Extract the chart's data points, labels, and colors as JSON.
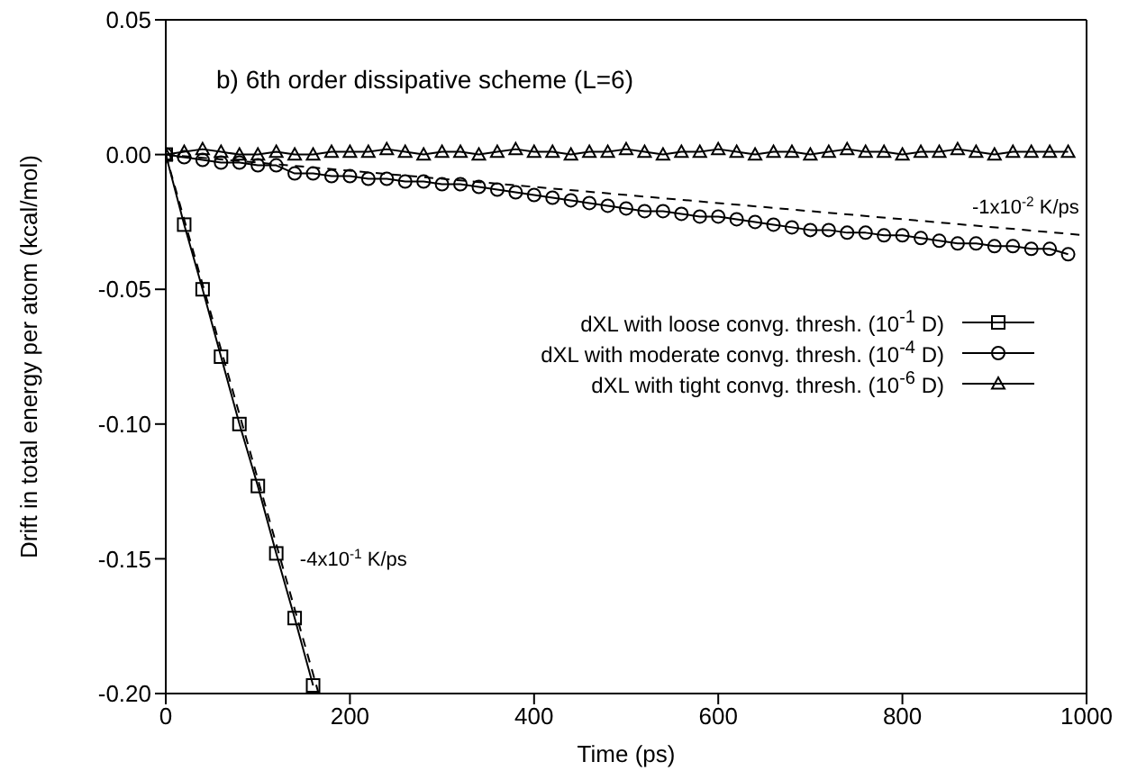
{
  "chart_data": {
    "type": "line",
    "title": "b) 6th order dissipative scheme (L=6)",
    "xlabel": "Time (ps)",
    "ylabel": "Drift in total energy per atom (kcal/mol)",
    "xlim": [
      0,
      1000
    ],
    "xticks": [
      0,
      200,
      400,
      600,
      800,
      1000
    ],
    "ylim": [
      -0.2,
      0.05
    ],
    "yticks": [
      {
        "value": 0.05,
        "label": "0.05"
      },
      {
        "value": 0,
        "label": "0.00"
      },
      {
        "value": -0.05,
        "label": "-0.05"
      },
      {
        "value": -0.1,
        "label": "-0.10"
      },
      {
        "value": -0.15,
        "label": "-0.15"
      },
      {
        "value": -0.2,
        "label": "-0.20"
      }
    ],
    "grid": false,
    "legend": "right",
    "series": [
      {
        "name": "dXL with loose convg. thresh. (10$^{-1}$ D)",
        "color": "#000000",
        "marker": "square",
        "line_style": "solid",
        "x": [
          0,
          20,
          40,
          60,
          80,
          100,
          120,
          140,
          160
        ],
        "values": [
          0,
          -0.026,
          -0.05,
          -0.075,
          -0.1,
          -0.123,
          -0.148,
          -0.172,
          -0.197
        ]
      },
      {
        "name": "dXL with moderate convg. thresh. (10$^{-4}$ D)",
        "color": "#000000",
        "marker": "circle",
        "line_style": "solid",
        "x": [
          0,
          20,
          40,
          60,
          80,
          100,
          120,
          140,
          160,
          180,
          200,
          220,
          240,
          260,
          280,
          300,
          320,
          340,
          360,
          380,
          400,
          420,
          440,
          460,
          480,
          500,
          520,
          540,
          560,
          580,
          600,
          620,
          640,
          660,
          680,
          700,
          720,
          740,
          760,
          780,
          800,
          820,
          840,
          860,
          880,
          900,
          920,
          940,
          960,
          980
        ],
        "values": [
          0,
          -0.001,
          -0.002,
          -0.003,
          -0.003,
          -0.004,
          -0.004,
          -0.007,
          -0.007,
          -0.008,
          -0.008,
          -0.009,
          -0.009,
          -0.01,
          -0.01,
          -0.011,
          -0.011,
          -0.012,
          -0.013,
          -0.014,
          -0.015,
          -0.016,
          -0.017,
          -0.018,
          -0.019,
          -0.02,
          -0.021,
          -0.021,
          -0.022,
          -0.023,
          -0.023,
          -0.024,
          -0.025,
          -0.026,
          -0.027,
          -0.028,
          -0.028,
          -0.029,
          -0.029,
          -0.03,
          -0.03,
          -0.031,
          -0.032,
          -0.033,
          -0.033,
          -0.034,
          -0.034,
          -0.035,
          -0.035,
          -0.037
        ]
      },
      {
        "name": "dXL with tight convg. thresh. (10$^{-6}$ D)",
        "color": "#000000",
        "marker": "triangle",
        "line_style": "solid",
        "x": [
          0,
          20,
          40,
          60,
          80,
          100,
          120,
          140,
          160,
          180,
          200,
          220,
          240,
          260,
          280,
          300,
          320,
          340,
          360,
          380,
          400,
          420,
          440,
          460,
          480,
          500,
          520,
          540,
          560,
          580,
          600,
          620,
          640,
          660,
          680,
          700,
          720,
          740,
          760,
          780,
          800,
          820,
          840,
          860,
          880,
          900,
          920,
          940,
          960,
          980
        ],
        "values": [
          0,
          0.001,
          0.002,
          0.001,
          0,
          0,
          0.001,
          0,
          0,
          0.001,
          0.001,
          0.001,
          0.002,
          0.001,
          0,
          0.001,
          0.001,
          0,
          0.001,
          0.002,
          0.001,
          0.001,
          0,
          0.001,
          0.001,
          0.002,
          0.001,
          0,
          0.001,
          0.001,
          0.002,
          0.001,
          0,
          0.001,
          0.001,
          0,
          0.001,
          0.002,
          0.001,
          0.001,
          0,
          0.001,
          0.001,
          0.002,
          0.001,
          0,
          0.001,
          0.001,
          0.001,
          0.001
        ]
      },
      {
        "type": "line",
        "color": "#000000",
        "marker": "none",
        "line_style": "dashed",
        "x": [
          0,
          1000
        ],
        "values": [
          0,
          -0.03
        ]
      },
      {
        "type": "line",
        "color": "#000000",
        "marker": "none",
        "line_style": "dashed",
        "x": [
          0,
          166
        ],
        "values": [
          0,
          -0.2
        ]
      }
    ],
    "annotations": [
      {
        "text": "-1x10$^{-2}$ K/ps",
        "x": 860,
        "y": -0.0258
      },
      {
        "text": "-4x10$^{-1}$ K/ps",
        "x": 130,
        "y": -0.1566
      }
    ]
  }
}
